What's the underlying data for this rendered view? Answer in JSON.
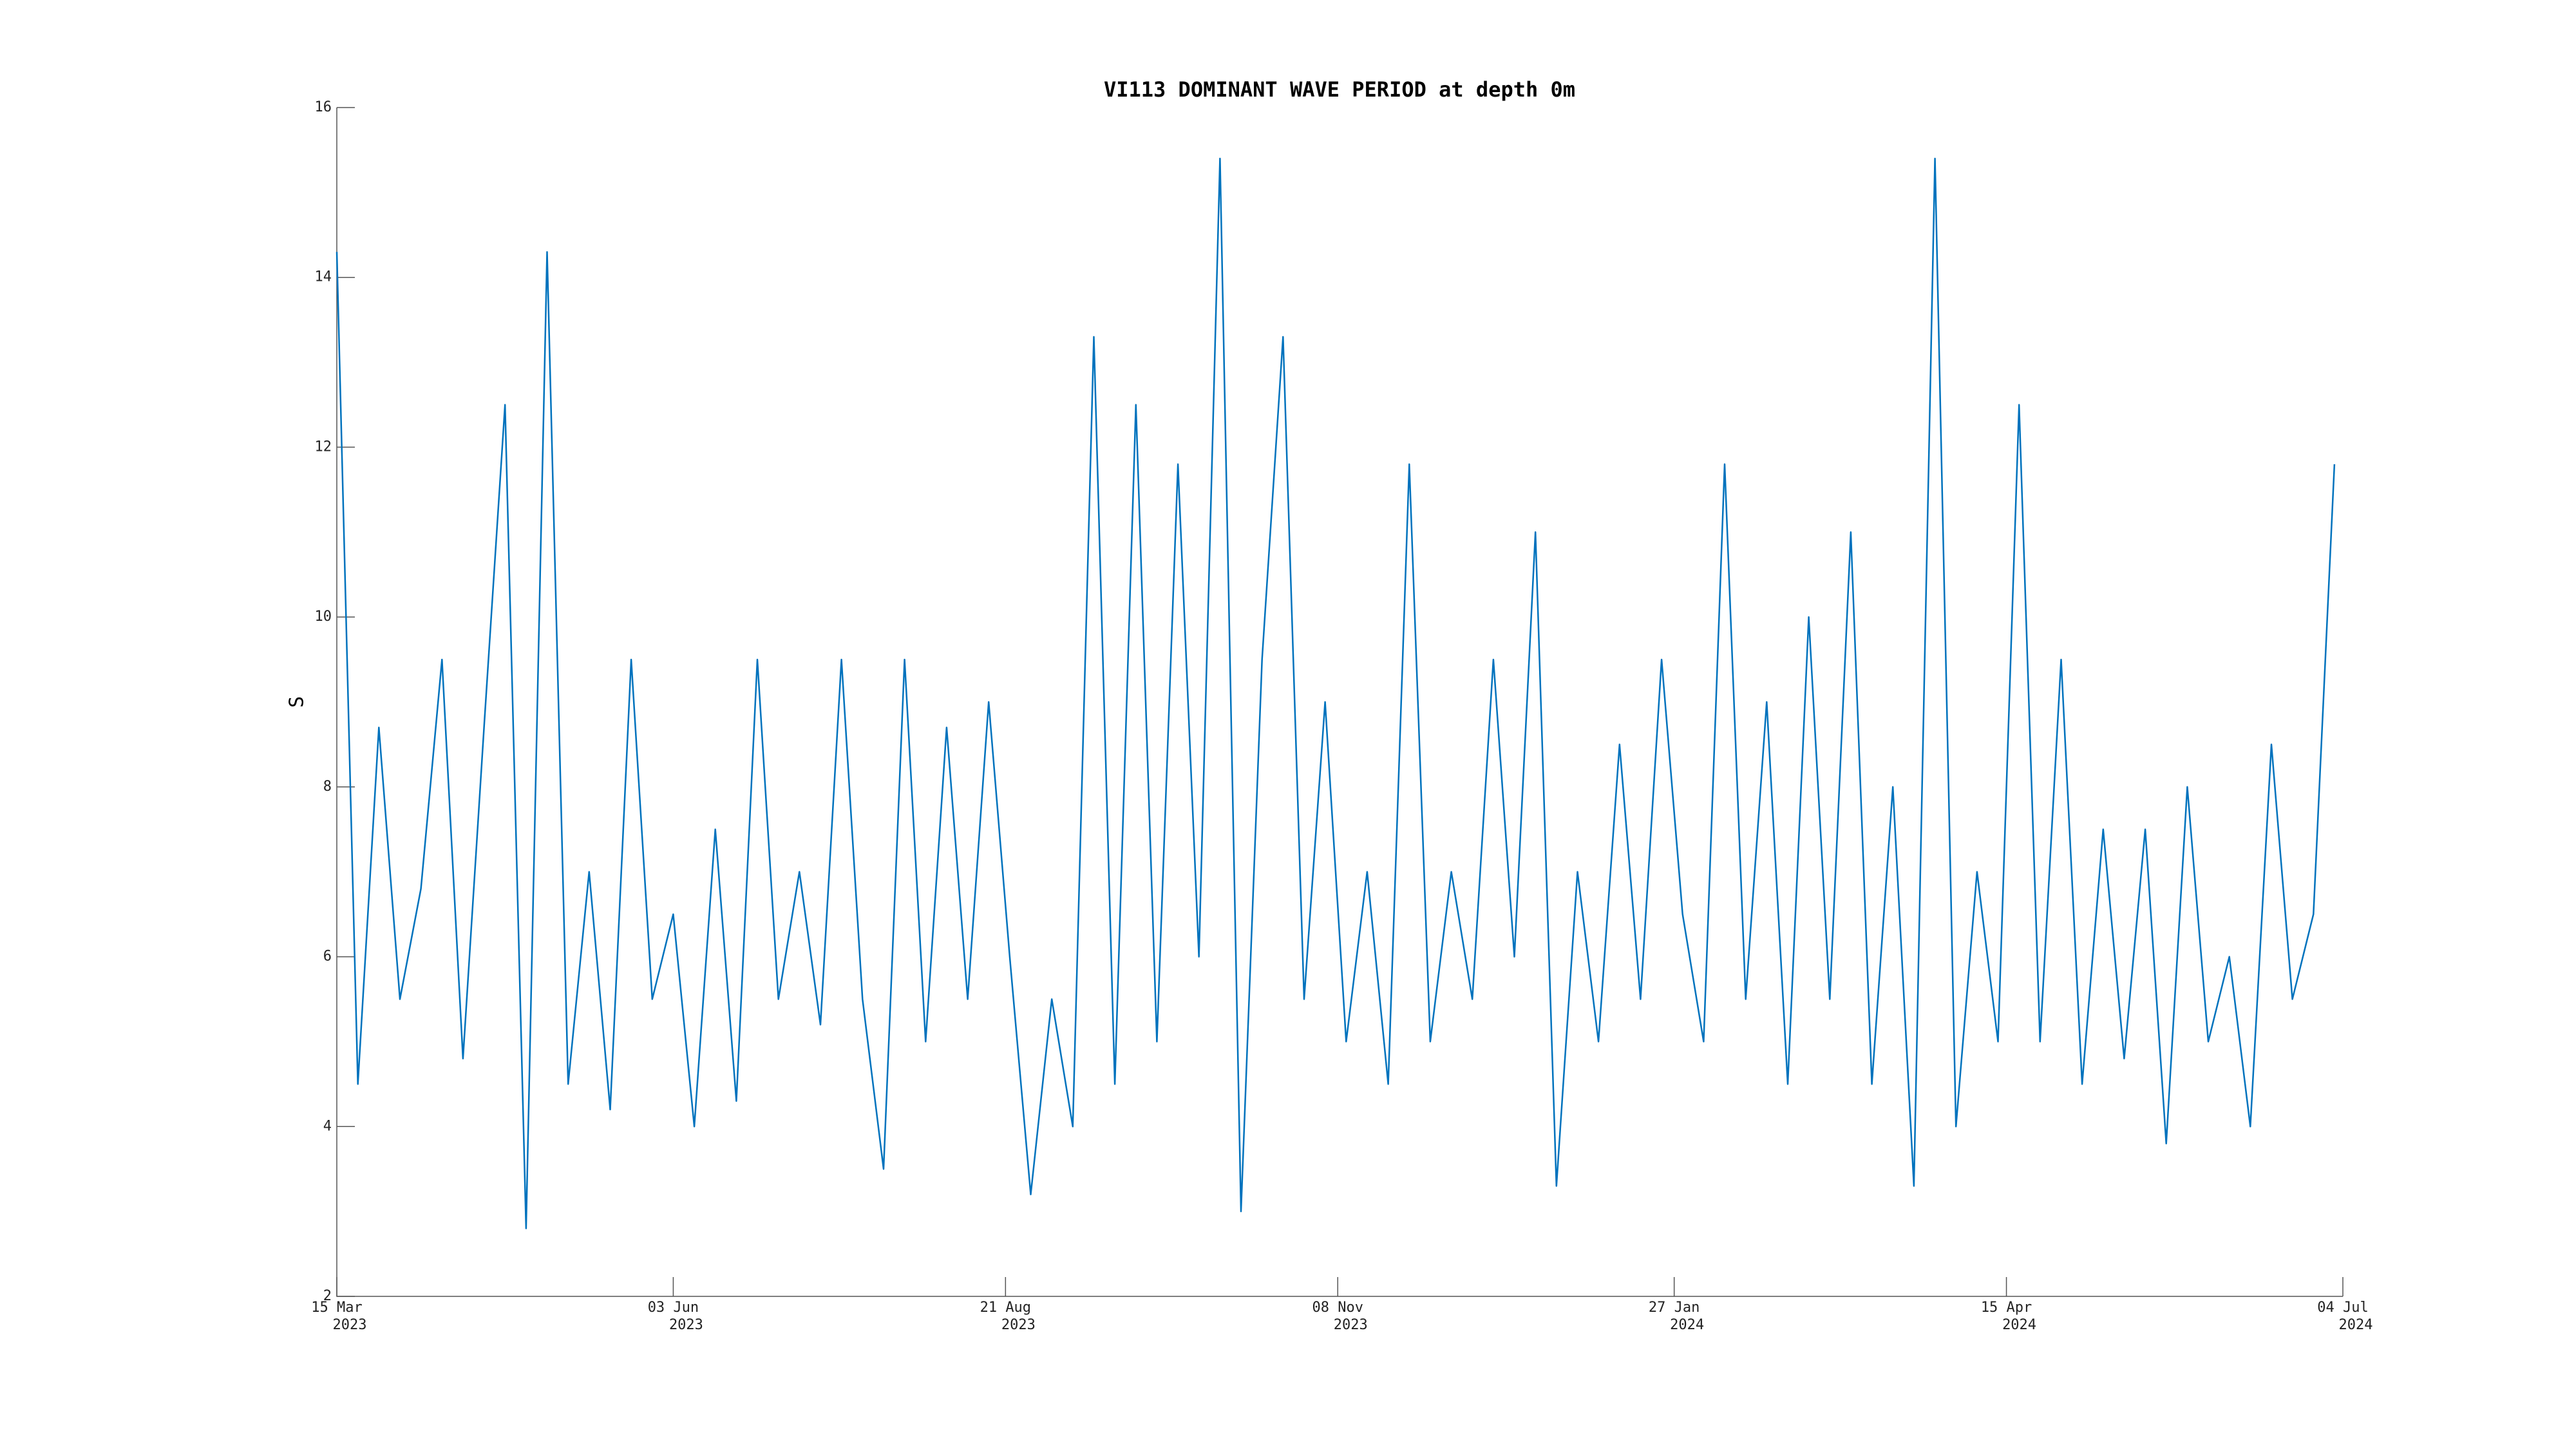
{
  "chart_data": {
    "type": "line",
    "title": "VI113 DOMINANT WAVE PERIOD at depth 0m",
    "ylabel": "S",
    "color": "#0072bd",
    "ylim": [
      2,
      16
    ],
    "yticks": [
      2,
      4,
      6,
      8,
      10,
      12,
      14,
      16
    ],
    "xlim": [
      "2023-03-15",
      "2024-07-04"
    ],
    "xticks": [
      {
        "value": "2023-03-15",
        "label": [
          "15 Mar",
          "2023"
        ]
      },
      {
        "value": "2023-06-03",
        "label": [
          "03 Jun",
          "2023"
        ]
      },
      {
        "value": "2023-08-21",
        "label": [
          "21 Aug",
          "2023"
        ]
      },
      {
        "value": "2023-11-08",
        "label": [
          "08 Nov",
          "2023"
        ]
      },
      {
        "value": "2024-01-27",
        "label": [
          "27 Jan",
          "2024"
        ]
      },
      {
        "value": "2024-04-15",
        "label": [
          "15 Apr",
          "2024"
        ]
      },
      {
        "value": "2024-07-04",
        "label": [
          "04 Jul",
          "2024"
        ]
      }
    ],
    "x": [
      "2023-03-15",
      "2023-03-20",
      "2023-03-25",
      "2023-03-30",
      "2023-04-04",
      "2023-04-09",
      "2023-04-14",
      "2023-04-19",
      "2023-04-24",
      "2023-04-29",
      "2023-05-04",
      "2023-05-09",
      "2023-05-14",
      "2023-05-19",
      "2023-05-24",
      "2023-05-29",
      "2023-06-03",
      "2023-06-08",
      "2023-06-13",
      "2023-06-18",
      "2023-06-23",
      "2023-06-28",
      "2023-07-03",
      "2023-07-08",
      "2023-07-13",
      "2023-07-18",
      "2023-07-23",
      "2023-07-28",
      "2023-08-02",
      "2023-08-07",
      "2023-08-12",
      "2023-08-17",
      "2023-08-22",
      "2023-08-27",
      "2023-09-01",
      "2023-09-06",
      "2023-09-11",
      "2023-09-16",
      "2023-09-21",
      "2023-09-26",
      "2023-10-01",
      "2023-10-06",
      "2023-10-11",
      "2023-10-16",
      "2023-10-21",
      "2023-10-26",
      "2023-10-31",
      "2023-11-05",
      "2023-11-10",
      "2023-11-15",
      "2023-11-20",
      "2023-11-25",
      "2023-11-30",
      "2023-12-05",
      "2023-12-10",
      "2023-12-15",
      "2023-12-20",
      "2023-12-25",
      "2023-12-30",
      "2024-01-04",
      "2024-01-09",
      "2024-01-14",
      "2024-01-19",
      "2024-01-24",
      "2024-01-29",
      "2024-02-03",
      "2024-02-08",
      "2024-02-13",
      "2024-02-18",
      "2024-02-23",
      "2024-02-28",
      "2024-03-04",
      "2024-03-09",
      "2024-03-14",
      "2024-03-19",
      "2024-03-24",
      "2024-03-29",
      "2024-04-03",
      "2024-04-08",
      "2024-04-13",
      "2024-04-18",
      "2024-04-23",
      "2024-04-28",
      "2024-05-03",
      "2024-05-08",
      "2024-05-13",
      "2024-05-18",
      "2024-05-23",
      "2024-05-28",
      "2024-06-02",
      "2024-06-07",
      "2024-06-12",
      "2024-06-17",
      "2024-06-22",
      "2024-06-27",
      "2024-07-02"
    ],
    "values": [
      14.3,
      4.5,
      8.7,
      5.5,
      6.8,
      9.5,
      4.8,
      8.7,
      12.5,
      2.8,
      14.3,
      4.5,
      7,
      4.2,
      9.5,
      5.5,
      6.5,
      4,
      7.5,
      4.3,
      9.5,
      5.5,
      7,
      5.2,
      9.5,
      5.5,
      3.5,
      9.5,
      5,
      8.7,
      5.5,
      9,
      6,
      3.2,
      5.5,
      4,
      13.3,
      4.5,
      12.5,
      5,
      11.8,
      6,
      15.4,
      3,
      9.5,
      13.3,
      5.5,
      9,
      5,
      7,
      4.5,
      11.8,
      5,
      7,
      5.5,
      9.5,
      6,
      11,
      3.3,
      7,
      5,
      8.5,
      5.5,
      9.5,
      6.5,
      5,
      11.8,
      5.5,
      9,
      4.5,
      10,
      5.5,
      11,
      4.5,
      8,
      3.3,
      15.4,
      4,
      7,
      5,
      12.5,
      5,
      9.5,
      4.5,
      7.5,
      4.8,
      7.5,
      3.8,
      8,
      5,
      6,
      4,
      8.5,
      5.5,
      6.5,
      11.8
    ]
  }
}
